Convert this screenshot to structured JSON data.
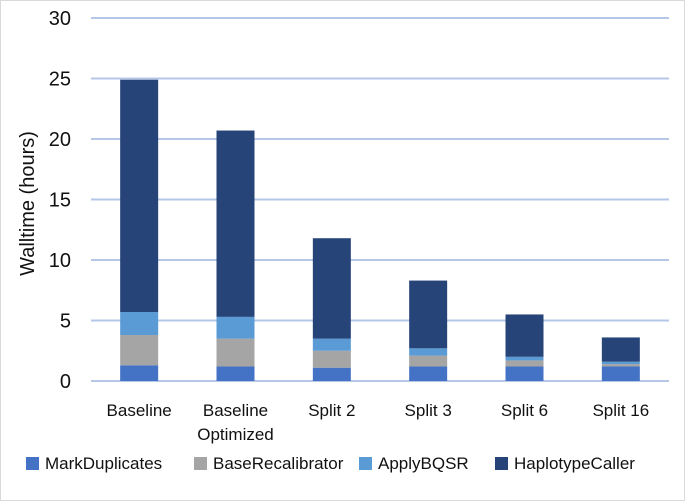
{
  "chart_data": {
    "type": "bar",
    "stacked": true,
    "categories": [
      [
        "Baseline"
      ],
      [
        "Baseline",
        "Optimized"
      ],
      [
        "Split 2"
      ],
      [
        "Split 3"
      ],
      [
        "Split 6"
      ],
      [
        "Split 16"
      ]
    ],
    "series": [
      {
        "name": "MarkDuplicates",
        "color": "#4472C4",
        "values": [
          1.3,
          1.2,
          1.1,
          1.2,
          1.2,
          1.2
        ]
      },
      {
        "name": "BaseRecalibrator",
        "color": "#A5A5A5",
        "values": [
          2.5,
          2.3,
          1.4,
          0.9,
          0.5,
          0.2
        ]
      },
      {
        "name": "ApplyBQSR",
        "color": "#5B9BD5",
        "values": [
          1.9,
          1.8,
          1.0,
          0.6,
          0.3,
          0.2
        ]
      },
      {
        "name": "HaplotypeCaller",
        "color": "#264478",
        "values": [
          19.2,
          15.4,
          8.3,
          5.6,
          3.5,
          2.0
        ]
      }
    ],
    "xlabel": "",
    "ylabel": "Walltime (hours)",
    "ylim": [
      0,
      30
    ],
    "yticks": [
      0,
      5,
      10,
      15,
      20,
      25,
      30
    ],
    "grid": true,
    "gridline_color": "#B4C7E7",
    "legend_position": "bottom"
  }
}
